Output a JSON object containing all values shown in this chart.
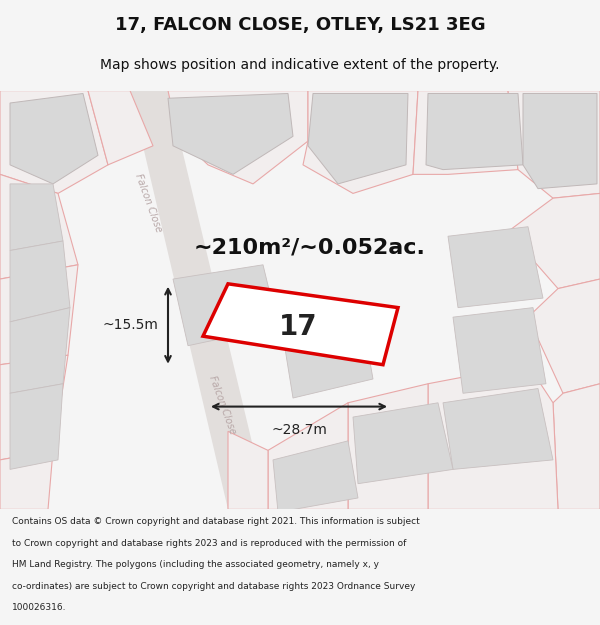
{
  "title": "17, FALCON CLOSE, OTLEY, LS21 3EG",
  "subtitle": "Map shows position and indicative extent of the property.",
  "footer_lines": [
    "Contains OS data © Crown copyright and database right 2021. This information is subject",
    "to Crown copyright and database rights 2023 and is reproduced with the permission of",
    "HM Land Registry. The polygons (including the associated geometry, namely x, y",
    "co-ordinates) are subject to Crown copyright and database rights 2023 Ordnance Survey",
    "100026316."
  ],
  "area_label": "~210m²/~0.052ac.",
  "dim_width": "~28.7m",
  "dim_height": "~15.5m",
  "property_number": "17",
  "map_bg": "#edeaea",
  "building_fill": "#d8d8d8",
  "building_edge": "#c0b8b8",
  "plot_outline_color": "#e8a8a8",
  "property_fill": "#ffffff",
  "property_edge": "#dd0000",
  "road_label_color": "#b8a8a8",
  "dim_color": "#222222",
  "title_color": "#111111",
  "footer_color": "#222222"
}
